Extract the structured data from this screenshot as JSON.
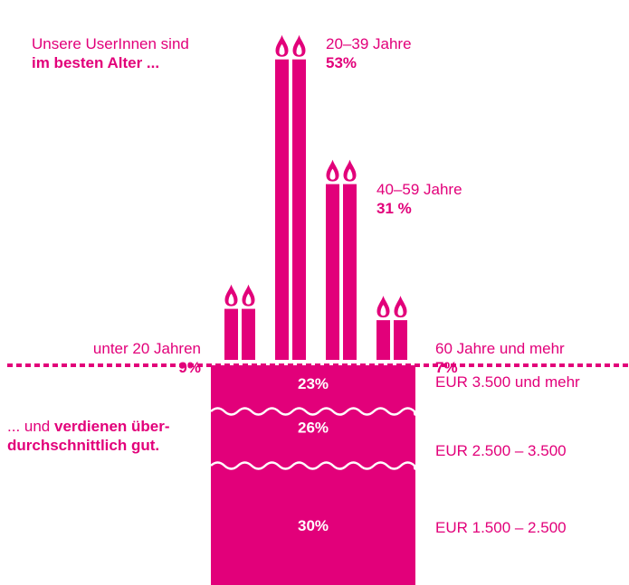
{
  "colors": {
    "accent": "#e2007a",
    "background": "#ffffff",
    "on_accent": "#ffffff"
  },
  "intro": {
    "line1": "Unsere UserInnen sind",
    "line2": "im besten Alter ..."
  },
  "income_intro": {
    "line1_a": "... und ",
    "line1_b": "verdienen über-",
    "line2": "durchschnittlich gut."
  },
  "chart_data": [
    {
      "type": "bar",
      "categories": [
        "unter 20 Jahren",
        "20–39 Jahre",
        "40–59 Jahre",
        "60 Jahre und mehr"
      ],
      "values": [
        9,
        53,
        31,
        7
      ],
      "value_labels": [
        "9%",
        "53%",
        "31 %",
        "7%"
      ],
      "unit": "%"
    },
    {
      "type": "bar",
      "stacked": true,
      "categories": [
        "EUR 3.500 und mehr",
        "EUR 2.500 – 3.500",
        "EUR 1.500 – 2.500"
      ],
      "values": [
        23,
        26,
        30
      ],
      "value_labels": [
        "23%",
        "26%",
        "30%"
      ],
      "unit": "%"
    }
  ]
}
